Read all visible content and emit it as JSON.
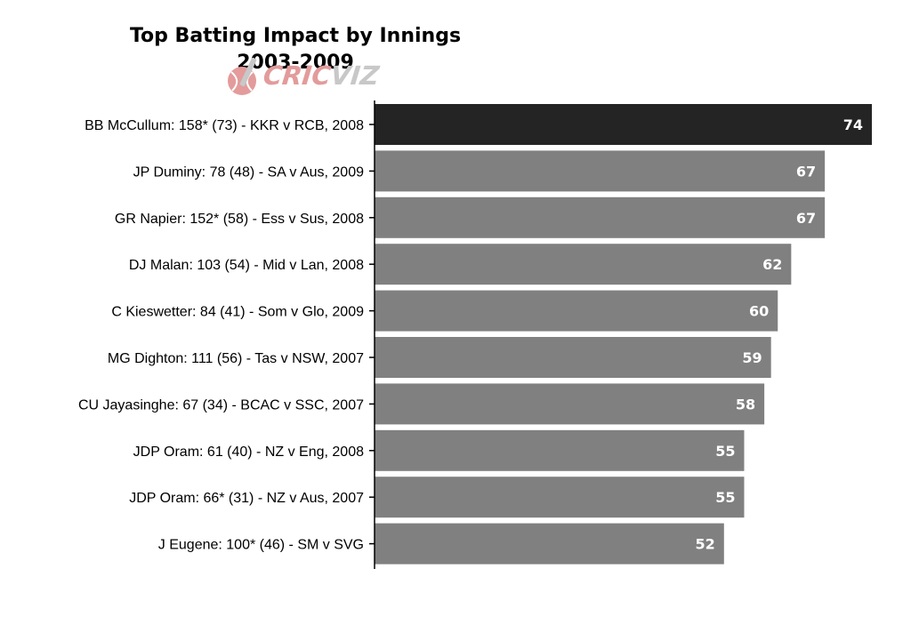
{
  "chart_data": {
    "type": "bar",
    "orientation": "horizontal",
    "title": [
      "Top Batting Impact by Innings",
      "2003-2009"
    ],
    "logo_text": {
      "part1": "CRIC",
      "part2": "VIZ"
    },
    "categories": [
      "BB McCullum: 158* (73) - KKR v RCB, 2008",
      "JP Duminy: 78 (48) - SA v Aus, 2009",
      "GR Napier: 152* (58) - Ess v Sus, 2008",
      "DJ Malan: 103 (54) - Mid v Lan, 2008",
      "C Kieswetter: 84 (41) - Som v Glo, 2009",
      "MG Dighton: 111 (56) - Tas v NSW, 2007",
      "CU Jayasinghe: 67 (34) - BCAC v SSC, 2007",
      "JDP Oram: 61 (40) - NZ v Eng, 2008",
      "JDP Oram: 66* (31) - NZ v Aus, 2007",
      "J Eugene: 100* (46) - SM v SVG"
    ],
    "values": [
      74,
      67,
      67,
      62,
      60,
      59,
      58,
      55,
      55,
      52
    ],
    "labels": [
      "74",
      "67",
      "67",
      "62",
      "60",
      "59",
      "58",
      "55",
      "55",
      "52"
    ],
    "xlim": [
      0,
      74
    ],
    "grid": false,
    "legend": "none",
    "colors": {
      "highlight": "#242424",
      "bar": "#808080",
      "label": "#ffffff",
      "axis": "#000000"
    }
  }
}
